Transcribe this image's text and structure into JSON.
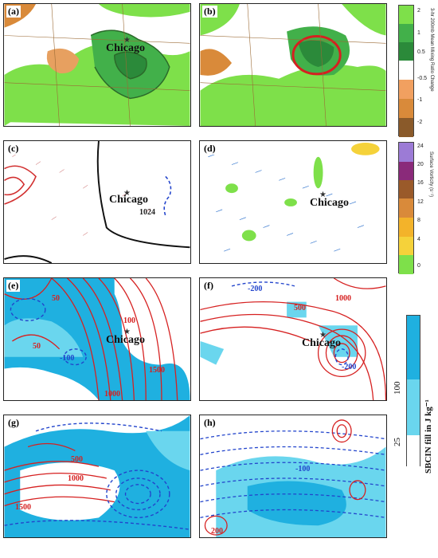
{
  "panels": {
    "a": {
      "label": "(a)",
      "city": "Chicago"
    },
    "b": {
      "label": "(b)"
    },
    "c": {
      "label": "(c)",
      "city": "Chicago",
      "contour": "1024"
    },
    "d": {
      "label": "(d)",
      "city": "Chicago"
    },
    "e": {
      "label": "(e)",
      "city": "Chicago",
      "contours": [
        "50",
        "-100",
        "1000",
        "1500",
        "100",
        "50"
      ]
    },
    "f": {
      "label": "(f)",
      "city": "Chicago",
      "contours": [
        "-200",
        "500",
        "1000",
        "-200"
      ]
    },
    "g": {
      "label": "(g)",
      "contours": [
        "1000",
        "1500",
        "500"
      ]
    },
    "h": {
      "label": "(h)",
      "contours": [
        "200",
        "-100"
      ]
    }
  },
  "colorbar_mixing": {
    "title": "3-hr 200mb Mean Mixing Ratio Change",
    "ticks": [
      "2",
      "1",
      "0.5",
      "-0.5",
      "-1",
      "-2"
    ],
    "colors": [
      "#7ee04a",
      "#42b04a",
      "#2b8a3a",
      "#ffffff",
      "#f1a060",
      "#d98a3a",
      "#8a5a2a"
    ]
  },
  "colorbar_vorticity": {
    "title": "Surface Vorticity (s⁻¹)",
    "ticks": [
      "24",
      "20",
      "16",
      "12",
      "8",
      "4",
      "0"
    ],
    "colors": [
      "#9c7bd6",
      "#8a2a7a",
      "#9a5a2a",
      "#d98a3a",
      "#f3b32a",
      "#f5d23a",
      "#7ee04a"
    ]
  },
  "colorbar_sbcin": {
    "title": "SBCIN fill in J kg⁻¹",
    "ticks": [
      "100",
      "25"
    ],
    "colors": [
      "#1fb0e0",
      "#6ad6ee",
      "#ffffff"
    ]
  }
}
